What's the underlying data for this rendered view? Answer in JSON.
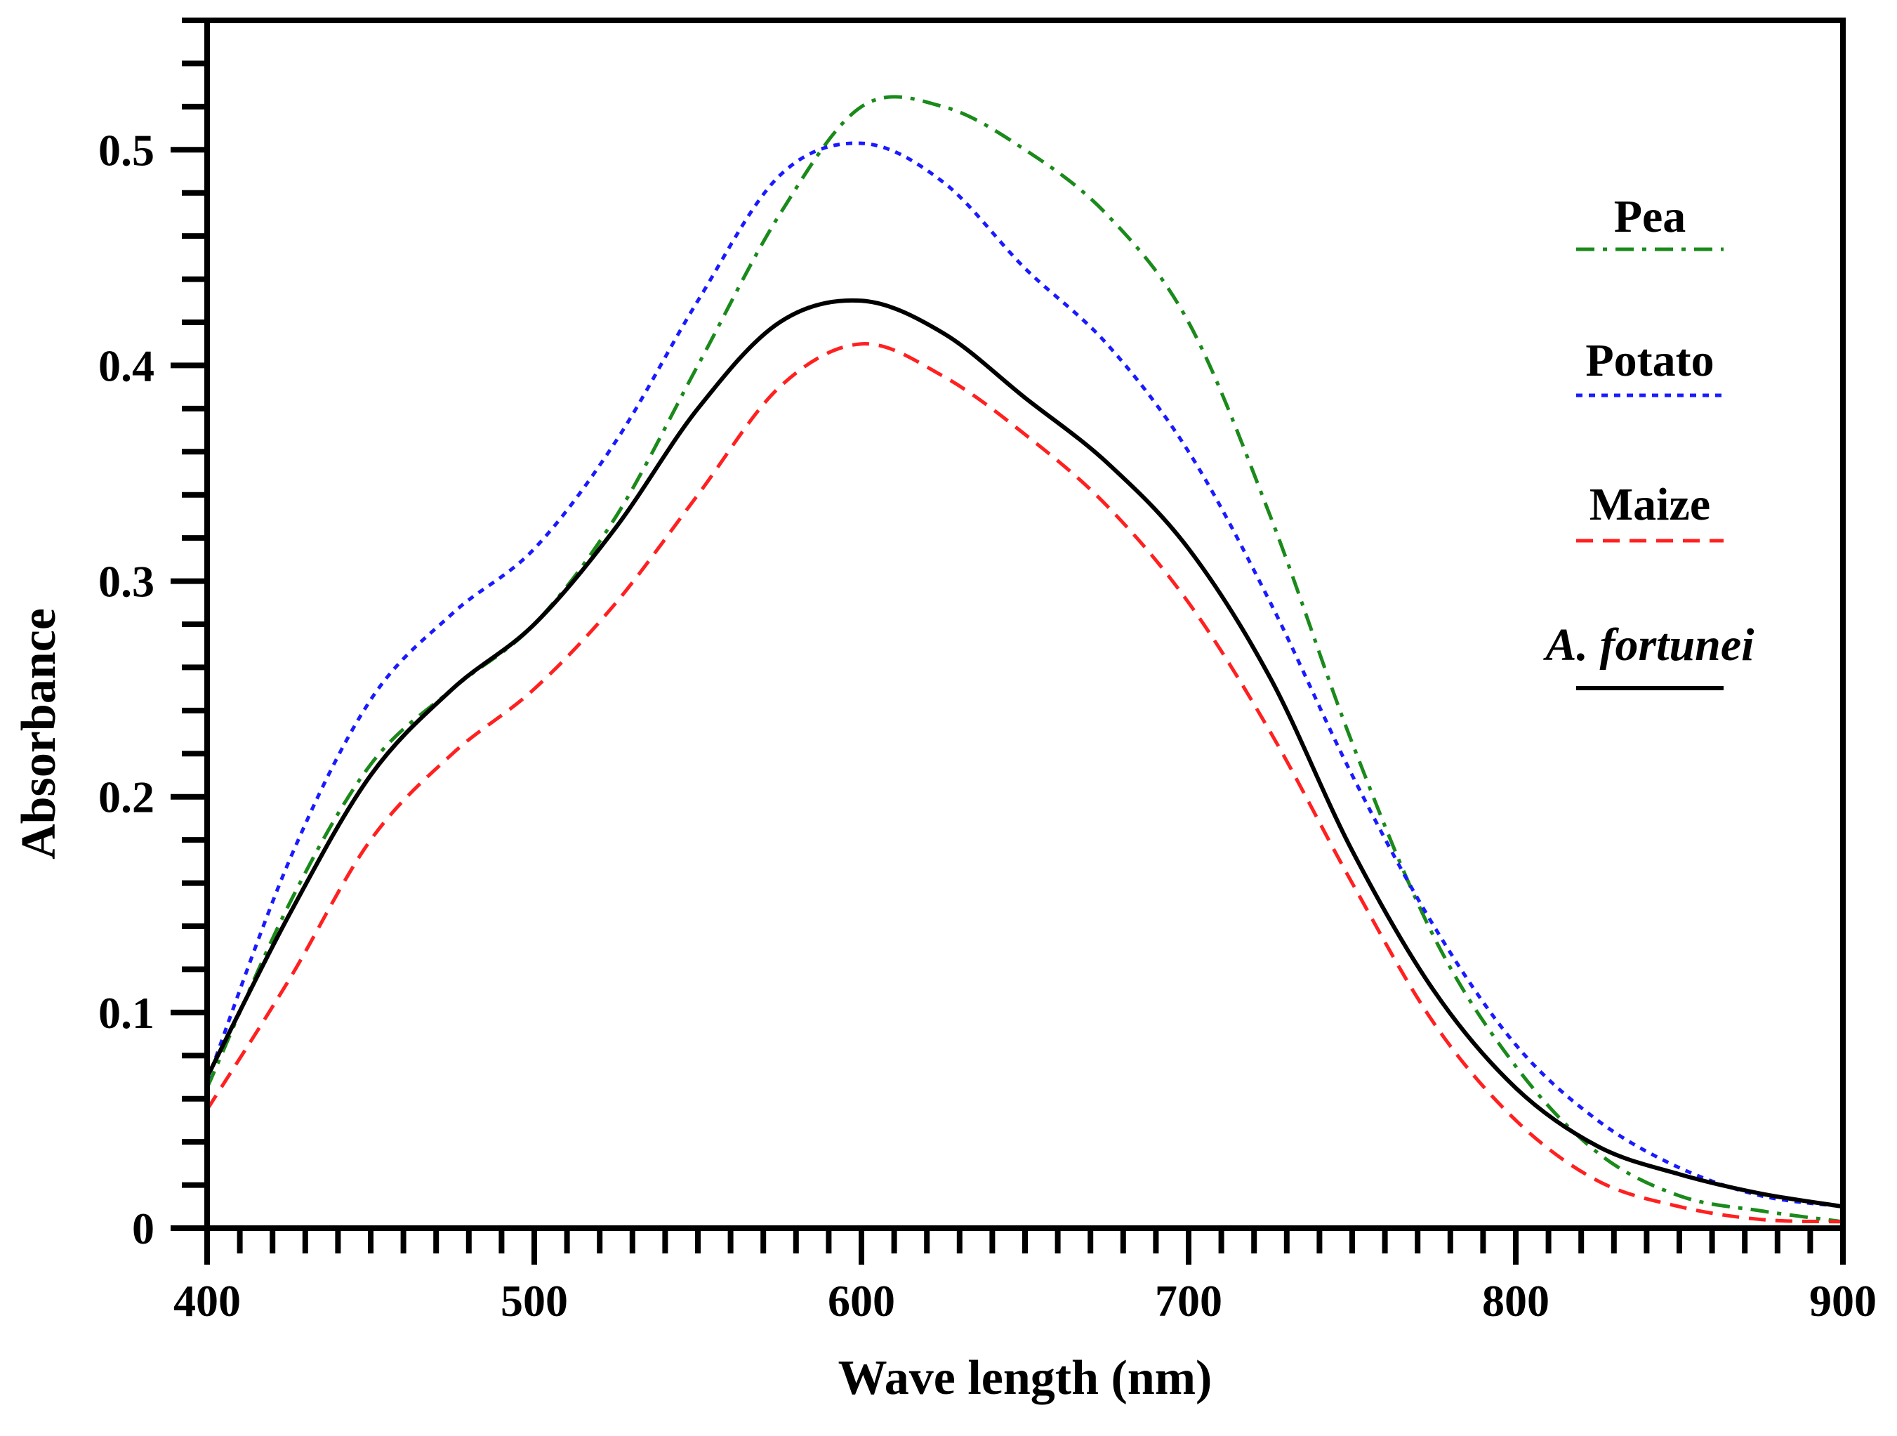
{
  "chart_data": {
    "type": "line",
    "title": "",
    "xlabel": "Wave length (nm)",
    "ylabel": "Absorbance",
    "xlim": [
      400,
      900
    ],
    "ylim": [
      0,
      0.56
    ],
    "grid": false,
    "legend_position": "right",
    "x_ticks": [
      400,
      500,
      600,
      700,
      800,
      900
    ],
    "x_tick_labels": [
      "400",
      "500",
      "600",
      "700",
      "800",
      "900"
    ],
    "y_ticks": [
      0,
      0.1,
      0.2,
      0.3,
      0.4,
      0.5
    ],
    "y_tick_labels": [
      "0",
      "0.1",
      "0.2",
      "0.3",
      "0.4",
      "0.5"
    ],
    "x": [
      400,
      425,
      450,
      475,
      500,
      525,
      550,
      575,
      600,
      625,
      650,
      675,
      700,
      725,
      750,
      775,
      800,
      825,
      850,
      875,
      900
    ],
    "series": [
      {
        "name": "Pea",
        "color": "#1a8a1a",
        "dash": "dashdot",
        "italic": false,
        "values": [
          0.065,
          0.15,
          0.215,
          0.25,
          0.28,
          0.33,
          0.4,
          0.47,
          0.52,
          0.52,
          0.5,
          0.47,
          0.42,
          0.33,
          0.225,
          0.135,
          0.075,
          0.035,
          0.015,
          0.008,
          0.003
        ]
      },
      {
        "name": "Potato",
        "color": "#1a1aff",
        "dash": "dotted",
        "italic": false,
        "values": [
          0.068,
          0.17,
          0.245,
          0.285,
          0.315,
          0.365,
          0.43,
          0.488,
          0.503,
          0.485,
          0.445,
          0.41,
          0.36,
          0.29,
          0.21,
          0.14,
          0.085,
          0.05,
          0.028,
          0.015,
          0.01
        ]
      },
      {
        "name": "Maize",
        "color": "#ff2020",
        "dash": "dashed",
        "italic": false,
        "values": [
          0.055,
          0.115,
          0.18,
          0.22,
          0.25,
          0.29,
          0.34,
          0.39,
          0.41,
          0.395,
          0.368,
          0.335,
          0.29,
          0.23,
          0.16,
          0.095,
          0.05,
          0.022,
          0.01,
          0.004,
          0.003
        ]
      },
      {
        "name": "A. fortunei",
        "color": "#000000",
        "dash": "solid",
        "italic": true,
        "values": [
          0.07,
          0.145,
          0.21,
          0.25,
          0.28,
          0.325,
          0.38,
          0.42,
          0.43,
          0.415,
          0.385,
          0.355,
          0.315,
          0.255,
          0.175,
          0.11,
          0.065,
          0.038,
          0.025,
          0.016,
          0.01
        ]
      }
    ]
  }
}
